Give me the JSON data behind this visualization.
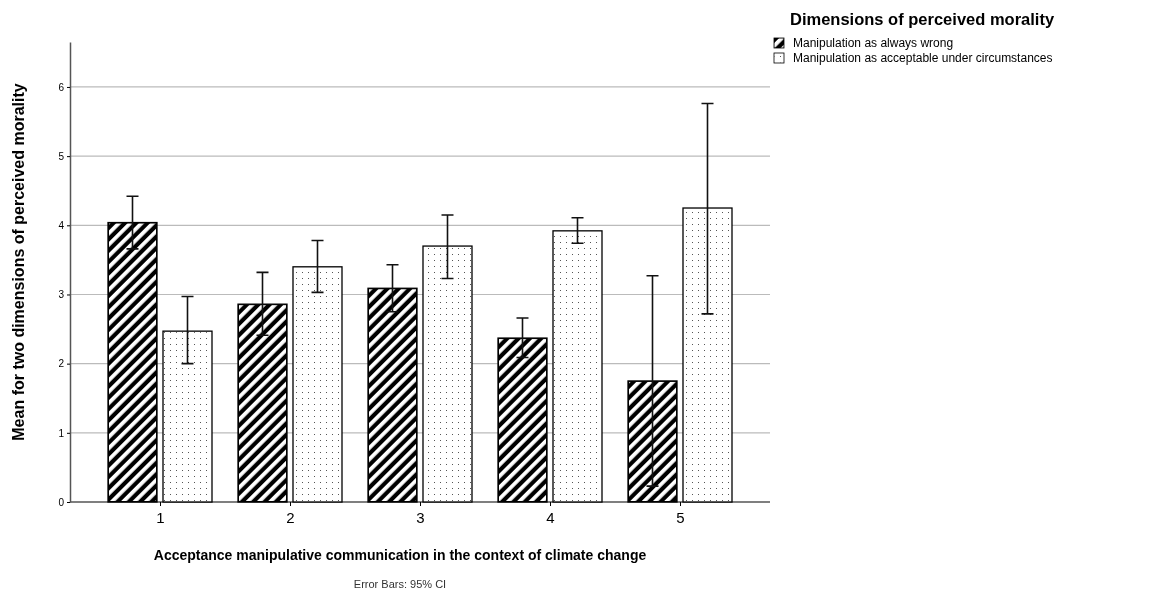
{
  "chart_data": {
    "type": "bar",
    "xlabel": "Acceptance manipulative communication in the context of climate change",
    "ylabel": "Mean for two dimensions of perceived morality",
    "legend_title": "Dimensions of perceived morality",
    "annotations": [
      "Error Bars: 95% CI"
    ],
    "categories": [
      "1",
      "2",
      "3",
      "4",
      "5"
    ],
    "series": [
      {
        "name": "Manipulation as always wrong",
        "color": "#000000",
        "values": [
          4.04,
          2.86,
          3.09,
          2.37,
          1.75
        ],
        "errors": [
          [
            3.66,
            4.42
          ],
          [
            2.41,
            3.32
          ],
          [
            2.75,
            3.43
          ],
          [
            2.09,
            2.66
          ],
          [
            0.23,
            3.27
          ]
        ]
      },
      {
        "name": "Manipulation as acceptable under circumstances",
        "color": "#ffffff",
        "values": [
          2.47,
          3.4,
          3.7,
          3.92,
          4.25
        ],
        "errors": [
          [
            2.0,
            2.97
          ],
          [
            3.03,
            3.78
          ],
          [
            3.23,
            4.15
          ],
          [
            3.74,
            4.11
          ],
          [
            2.72,
            5.76
          ]
        ]
      }
    ],
    "ylim": [
      0,
      6.65
    ],
    "yticks": [
      0,
      1,
      2,
      3,
      4,
      5,
      6
    ],
    "grid": "y",
    "legend": "top right"
  }
}
